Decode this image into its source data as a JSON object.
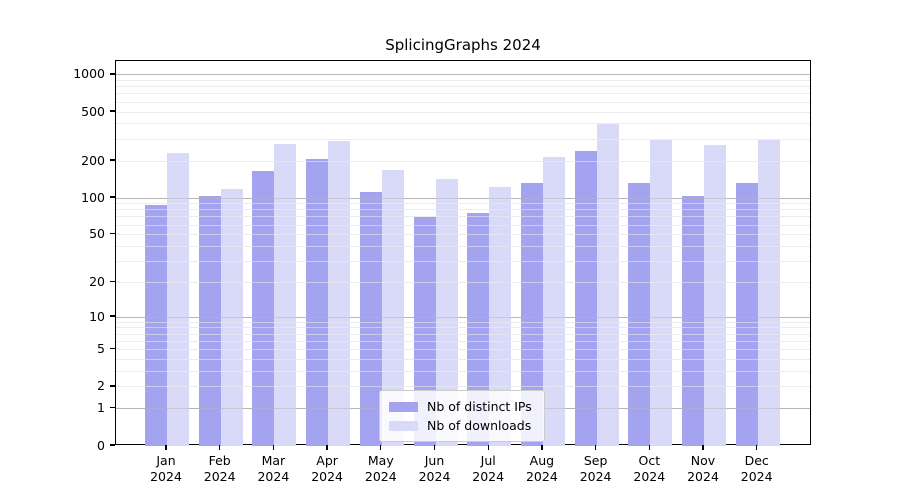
{
  "figure": {
    "background": "#ffffff"
  },
  "chart_data": {
    "type": "bar",
    "title": "SplicingGraphs 2024",
    "categories": [
      "Jan",
      "Feb",
      "Mar",
      "Apr",
      "May",
      "Jun",
      "Jul",
      "Aug",
      "Sep",
      "Oct",
      "Nov",
      "Dec"
    ],
    "year_label": "2024",
    "series": [
      {
        "name": "Nb of distinct IPs",
        "color": "#a3a3f0",
        "values": [
          87,
          104,
          166,
          207,
          113,
          70,
          75,
          133,
          240,
          133,
          104,
          133
        ]
      },
      {
        "name": "Nb of downloads",
        "color": "#d9d9f8",
        "values": [
          232,
          118,
          275,
          290,
          169,
          143,
          122,
          215,
          398,
          297,
          269,
          296
        ]
      }
    ],
    "ytick_labels": [
      "1000",
      "500",
      "200",
      "100",
      "50",
      "20",
      "10",
      "5",
      "2",
      "1",
      "0"
    ],
    "ytick_values": [
      1000,
      500,
      200,
      100,
      50,
      20,
      10,
      5,
      2,
      1,
      0
    ],
    "scale": "log10(x+1)",
    "ylim": [
      0,
      1150
    ],
    "grid": true,
    "legend_position": "lower center",
    "xlabel": "",
    "ylabel": ""
  },
  "colors": {
    "major_grid": "#b6b6b6",
    "minor_grid": "#ececec",
    "frame": "#000000",
    "text": "#000000"
  }
}
